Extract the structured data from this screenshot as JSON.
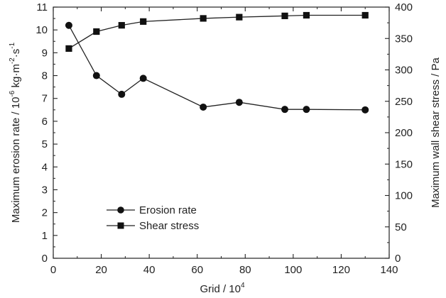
{
  "chart_data": {
    "type": "line",
    "x": [
      6.5,
      18,
      28.5,
      37.5,
      62.5,
      77.5,
      96.5,
      105.5,
      130
    ],
    "xlabel": "Grid / 10",
    "xlabel_sup": "4",
    "xlim": [
      0,
      140
    ],
    "xticks": [
      0,
      20,
      40,
      60,
      80,
      100,
      120,
      140
    ],
    "ylabel_left_base": "Maximum erosion rate / 10",
    "ylabel_left_exp1": "-6",
    "ylabel_left_unit1": " kg·m",
    "ylabel_left_exp2": "-2",
    "ylabel_left_unit2": "·s",
    "ylabel_left_exp3": "-1",
    "ylim_left": [
      0,
      11
    ],
    "yticks_left": [
      0,
      1,
      2,
      3,
      4,
      5,
      6,
      7,
      8,
      9,
      10,
      11
    ],
    "ylabel_right": "Maximum wall shear stress / Pa",
    "ylim_right": [
      0,
      400
    ],
    "yticks_right": [
      0,
      50,
      100,
      150,
      200,
      250,
      300,
      350,
      400
    ],
    "series": [
      {
        "name": "Erosion rate",
        "axis": "left",
        "marker": "circle",
        "values": [
          10.2,
          8.0,
          7.18,
          7.88,
          6.62,
          6.83,
          6.52,
          6.52,
          6.5
        ]
      },
      {
        "name": "Shear stress",
        "axis": "right",
        "marker": "square",
        "values": [
          334,
          361,
          371,
          377,
          382,
          384,
          386,
          387,
          387
        ]
      }
    ],
    "legend_position": "lower-left",
    "grid": false,
    "colors": {
      "line": "#222222",
      "marker": "#111111"
    }
  }
}
